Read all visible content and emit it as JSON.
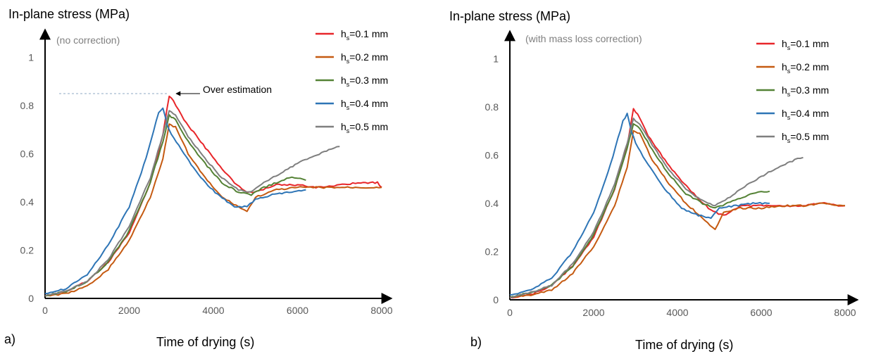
{
  "chart_data": [
    {
      "type": "line",
      "panel": "a)",
      "ylabel": "In-plane stress (MPa)",
      "xlabel": "Time of drying (s)",
      "note": "(no correction)",
      "xlim": [
        0,
        8000
      ],
      "ylim": [
        0,
        1.1
      ],
      "x_ticks": [
        0,
        2000,
        4000,
        6000,
        8000
      ],
      "y_ticks": [
        0,
        0.2,
        0.4,
        0.6,
        0.8,
        1
      ],
      "y_tick_labels": [
        "0",
        "0.2",
        "0.4",
        "0.6",
        "0.8",
        "1"
      ],
      "grid": false,
      "legend_position": "top-right",
      "annotation": {
        "text": "Over estimation",
        "x": 3000,
        "y": 0.855
      },
      "series": [
        {
          "name": "h_s=0.1 mm",
          "color": "#e8262a",
          "x": [
            0,
            500,
            1000,
            1500,
            2000,
            2500,
            2800,
            2950,
            3050,
            3300,
            3700,
            4100,
            4500,
            4800,
            5000,
            5500,
            6000,
            6500,
            7000,
            7500,
            7900,
            8000
          ],
          "y": [
            0.01,
            0.03,
            0.07,
            0.15,
            0.27,
            0.48,
            0.68,
            0.84,
            0.82,
            0.74,
            0.65,
            0.56,
            0.48,
            0.44,
            0.44,
            0.47,
            0.47,
            0.46,
            0.47,
            0.48,
            0.48,
            0.46
          ]
        },
        {
          "name": "h_s=0.2 mm",
          "color": "#c55a11",
          "x": [
            0,
            500,
            1000,
            1500,
            2000,
            2500,
            2800,
            2950,
            3100,
            3400,
            3800,
            4200,
            4600,
            4800,
            5000,
            5500,
            6000,
            6500,
            7000,
            7500,
            8000
          ],
          "y": [
            0.01,
            0.02,
            0.05,
            0.12,
            0.24,
            0.42,
            0.58,
            0.72,
            0.71,
            0.6,
            0.5,
            0.42,
            0.38,
            0.36,
            0.42,
            0.45,
            0.46,
            0.46,
            0.46,
            0.46,
            0.46
          ]
        },
        {
          "name": "h_s=0.3 mm",
          "color": "#548235",
          "x": [
            0,
            500,
            1000,
            1500,
            2000,
            2500,
            2800,
            2950,
            3100,
            3400,
            3800,
            4200,
            4600,
            4900,
            5200,
            5500,
            5800,
            6000,
            6200
          ],
          "y": [
            0.01,
            0.03,
            0.07,
            0.15,
            0.28,
            0.48,
            0.65,
            0.76,
            0.74,
            0.65,
            0.56,
            0.48,
            0.44,
            0.43,
            0.46,
            0.48,
            0.5,
            0.5,
            0.49
          ]
        },
        {
          "name": "h_s=0.4 mm",
          "color": "#2e75b6",
          "x": [
            0,
            500,
            1000,
            1500,
            2000,
            2400,
            2700,
            2800,
            2900,
            3000,
            3300,
            3700,
            4100,
            4500,
            4800,
            5000,
            5400,
            5800,
            6200
          ],
          "y": [
            0.02,
            0.04,
            0.1,
            0.22,
            0.38,
            0.58,
            0.77,
            0.79,
            0.72,
            0.68,
            0.6,
            0.5,
            0.43,
            0.38,
            0.38,
            0.41,
            0.43,
            0.44,
            0.45
          ]
        },
        {
          "name": "h_s=0.5 mm",
          "color": "#7f7f7f",
          "x": [
            0,
            500,
            1000,
            1500,
            2000,
            2500,
            2800,
            2950,
            3100,
            3400,
            3800,
            4200,
            4600,
            4900,
            5200,
            5600,
            6000,
            6400,
            6800,
            7000
          ],
          "y": [
            0.01,
            0.03,
            0.07,
            0.16,
            0.3,
            0.5,
            0.68,
            0.78,
            0.76,
            0.67,
            0.58,
            0.5,
            0.45,
            0.44,
            0.48,
            0.52,
            0.56,
            0.59,
            0.62,
            0.63
          ]
        }
      ]
    },
    {
      "type": "line",
      "panel": "b)",
      "ylabel": "In-plane stress (MPa)",
      "xlabel": "Time of drying (s)",
      "note": "(with mass loss correction)",
      "xlim": [
        0,
        8000
      ],
      "ylim": [
        0,
        1.1
      ],
      "x_ticks": [
        0,
        2000,
        4000,
        6000,
        8000
      ],
      "y_ticks": [
        0,
        0.2,
        0.4,
        0.6,
        0.8,
        1
      ],
      "y_tick_labels": [
        "0",
        "0.2",
        "0.4",
        "0.6",
        "0.8",
        "1"
      ],
      "grid": false,
      "legend_position": "top-right",
      "series": [
        {
          "name": "h_s=0.1 mm",
          "color": "#e8262a",
          "x": [
            0,
            500,
            1000,
            1500,
            2000,
            2500,
            2800,
            2950,
            3050,
            3300,
            3700,
            4100,
            4500,
            4800,
            5100,
            5500,
            6000,
            6500,
            7000,
            7500,
            7900,
            8000
          ],
          "y": [
            0.01,
            0.02,
            0.06,
            0.14,
            0.26,
            0.46,
            0.64,
            0.79,
            0.77,
            0.68,
            0.58,
            0.49,
            0.42,
            0.37,
            0.35,
            0.39,
            0.39,
            0.39,
            0.39,
            0.4,
            0.39,
            0.39
          ]
        },
        {
          "name": "h_s=0.2 mm",
          "color": "#c55a11",
          "x": [
            0,
            500,
            1000,
            1500,
            2000,
            2500,
            2800,
            2950,
            3100,
            3400,
            3800,
            4200,
            4600,
            4900,
            5100,
            5500,
            6000,
            6500,
            7000,
            7500,
            8000
          ],
          "y": [
            0.01,
            0.02,
            0.04,
            0.11,
            0.22,
            0.39,
            0.55,
            0.7,
            0.69,
            0.58,
            0.48,
            0.4,
            0.34,
            0.29,
            0.36,
            0.38,
            0.38,
            0.39,
            0.39,
            0.4,
            0.39
          ]
        },
        {
          "name": "h_s=0.3 mm",
          "color": "#548235",
          "x": [
            0,
            500,
            1000,
            1500,
            2000,
            2500,
            2800,
            2950,
            3100,
            3400,
            3800,
            4200,
            4600,
            4900,
            5200,
            5500,
            5800,
            6000,
            6200
          ],
          "y": [
            0.01,
            0.03,
            0.06,
            0.14,
            0.27,
            0.46,
            0.63,
            0.73,
            0.71,
            0.62,
            0.52,
            0.44,
            0.4,
            0.38,
            0.4,
            0.42,
            0.44,
            0.45,
            0.45
          ]
        },
        {
          "name": "h_s=0.4 mm",
          "color": "#2e75b6",
          "x": [
            0,
            500,
            1000,
            1500,
            2000,
            2400,
            2700,
            2800,
            2900,
            3000,
            3300,
            3700,
            4100,
            4500,
            4800,
            5000,
            5400,
            5800,
            6200
          ],
          "y": [
            0.02,
            0.04,
            0.09,
            0.2,
            0.36,
            0.56,
            0.74,
            0.77,
            0.7,
            0.65,
            0.56,
            0.46,
            0.38,
            0.35,
            0.34,
            0.38,
            0.39,
            0.4,
            0.4
          ]
        },
        {
          "name": "h_s=0.5 mm",
          "color": "#7f7f7f",
          "x": [
            0,
            500,
            1000,
            1500,
            2000,
            2500,
            2800,
            2950,
            3100,
            3400,
            3800,
            4200,
            4600,
            4900,
            5200,
            5600,
            6000,
            6400,
            6800,
            7000
          ],
          "y": [
            0.01,
            0.03,
            0.06,
            0.15,
            0.28,
            0.48,
            0.65,
            0.75,
            0.73,
            0.64,
            0.54,
            0.46,
            0.41,
            0.39,
            0.42,
            0.47,
            0.51,
            0.55,
            0.58,
            0.59
          ]
        }
      ]
    }
  ]
}
